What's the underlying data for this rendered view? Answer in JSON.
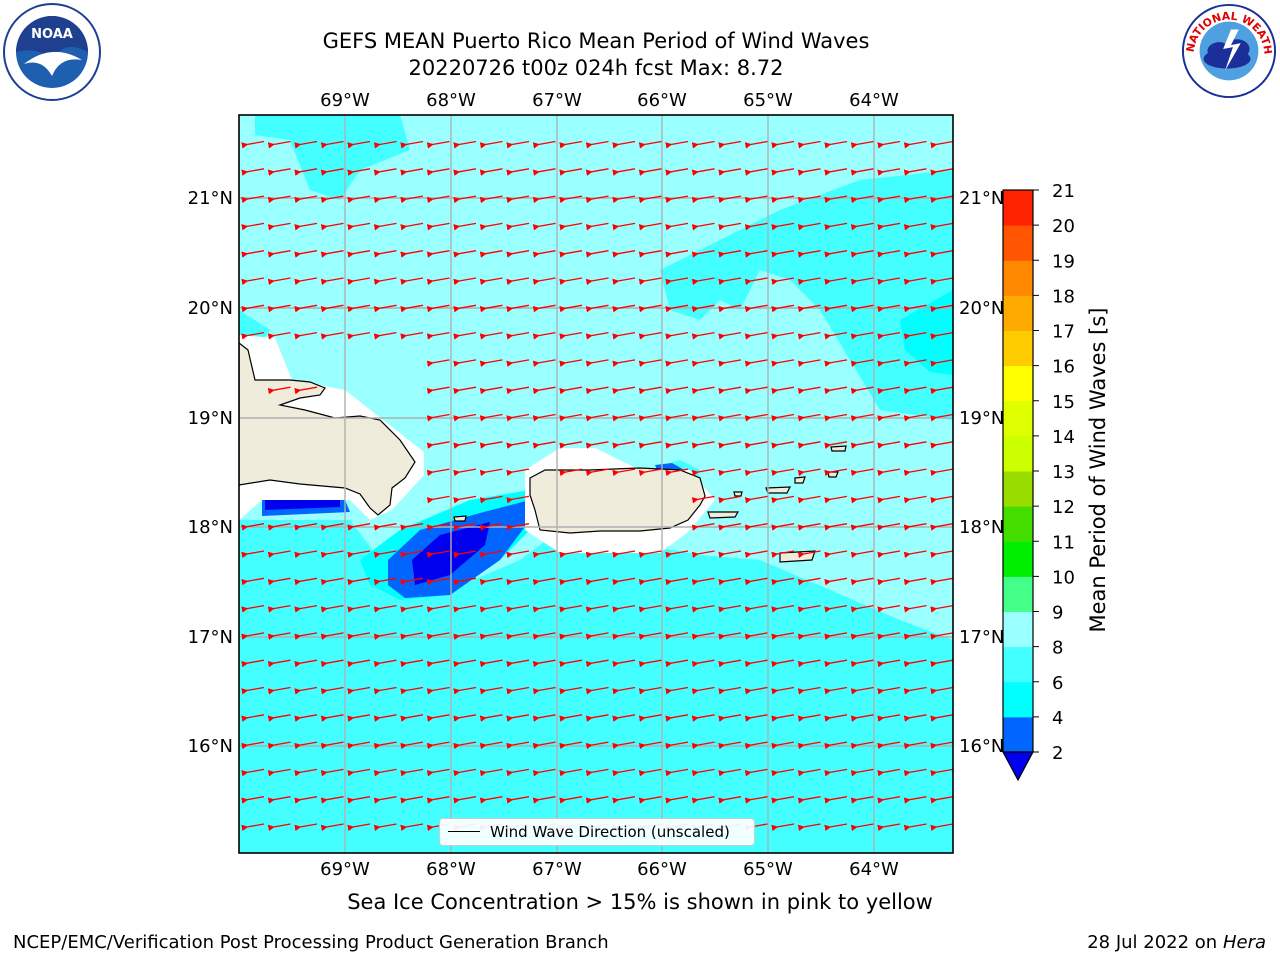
{
  "header": {
    "title_line1": "GEFS MEAN Puerto Rico Mean Period of Wind Waves",
    "title_line2": "20220726 t00z 024h fcst   Max: 8.72"
  },
  "map": {
    "lon_ticks": [
      "69°W",
      "68°W",
      "67°W",
      "66°W",
      "65°W",
      "64°W"
    ],
    "lat_ticks": [
      "21°N",
      "20°N",
      "19°N",
      "18°N",
      "17°N",
      "16°N"
    ],
    "legend_label": "Wind Wave Direction (unscaled)",
    "ocean_color": "#99ffff",
    "land_color": "#efecdc",
    "arrow_color": "#ff0000"
  },
  "colorbar": {
    "label": "Mean Period of Wind Waves [s]",
    "ticks": [
      "2",
      "4",
      "6",
      "8",
      "9",
      "10",
      "11",
      "12",
      "13",
      "14",
      "15",
      "16",
      "17",
      "18",
      "19",
      "20",
      "21"
    ],
    "colors": [
      "#0066ff",
      "#00ffff",
      "#44ffff",
      "#99ffff",
      "#44ff88",
      "#00ee00",
      "#44dd00",
      "#99dd00",
      "#ccff00",
      "#ddff00",
      "#ffff00",
      "#ffcc00",
      "#ffaa00",
      "#ff8800",
      "#ff5500",
      "#ff2200"
    ],
    "extend_color": "#0000ee"
  },
  "caption": "Sea Ice Concentration > 15% is shown in pink to yellow",
  "footer": {
    "left": "NCEP/EMC/Verification Post Processing Product Generation Branch",
    "right_date": "28 Jul 2022 on",
    "right_host": "Hera"
  },
  "logos": {
    "noaa_text": "NOAA",
    "nws_text": "NATIONAL WEATHER SERVICE"
  }
}
